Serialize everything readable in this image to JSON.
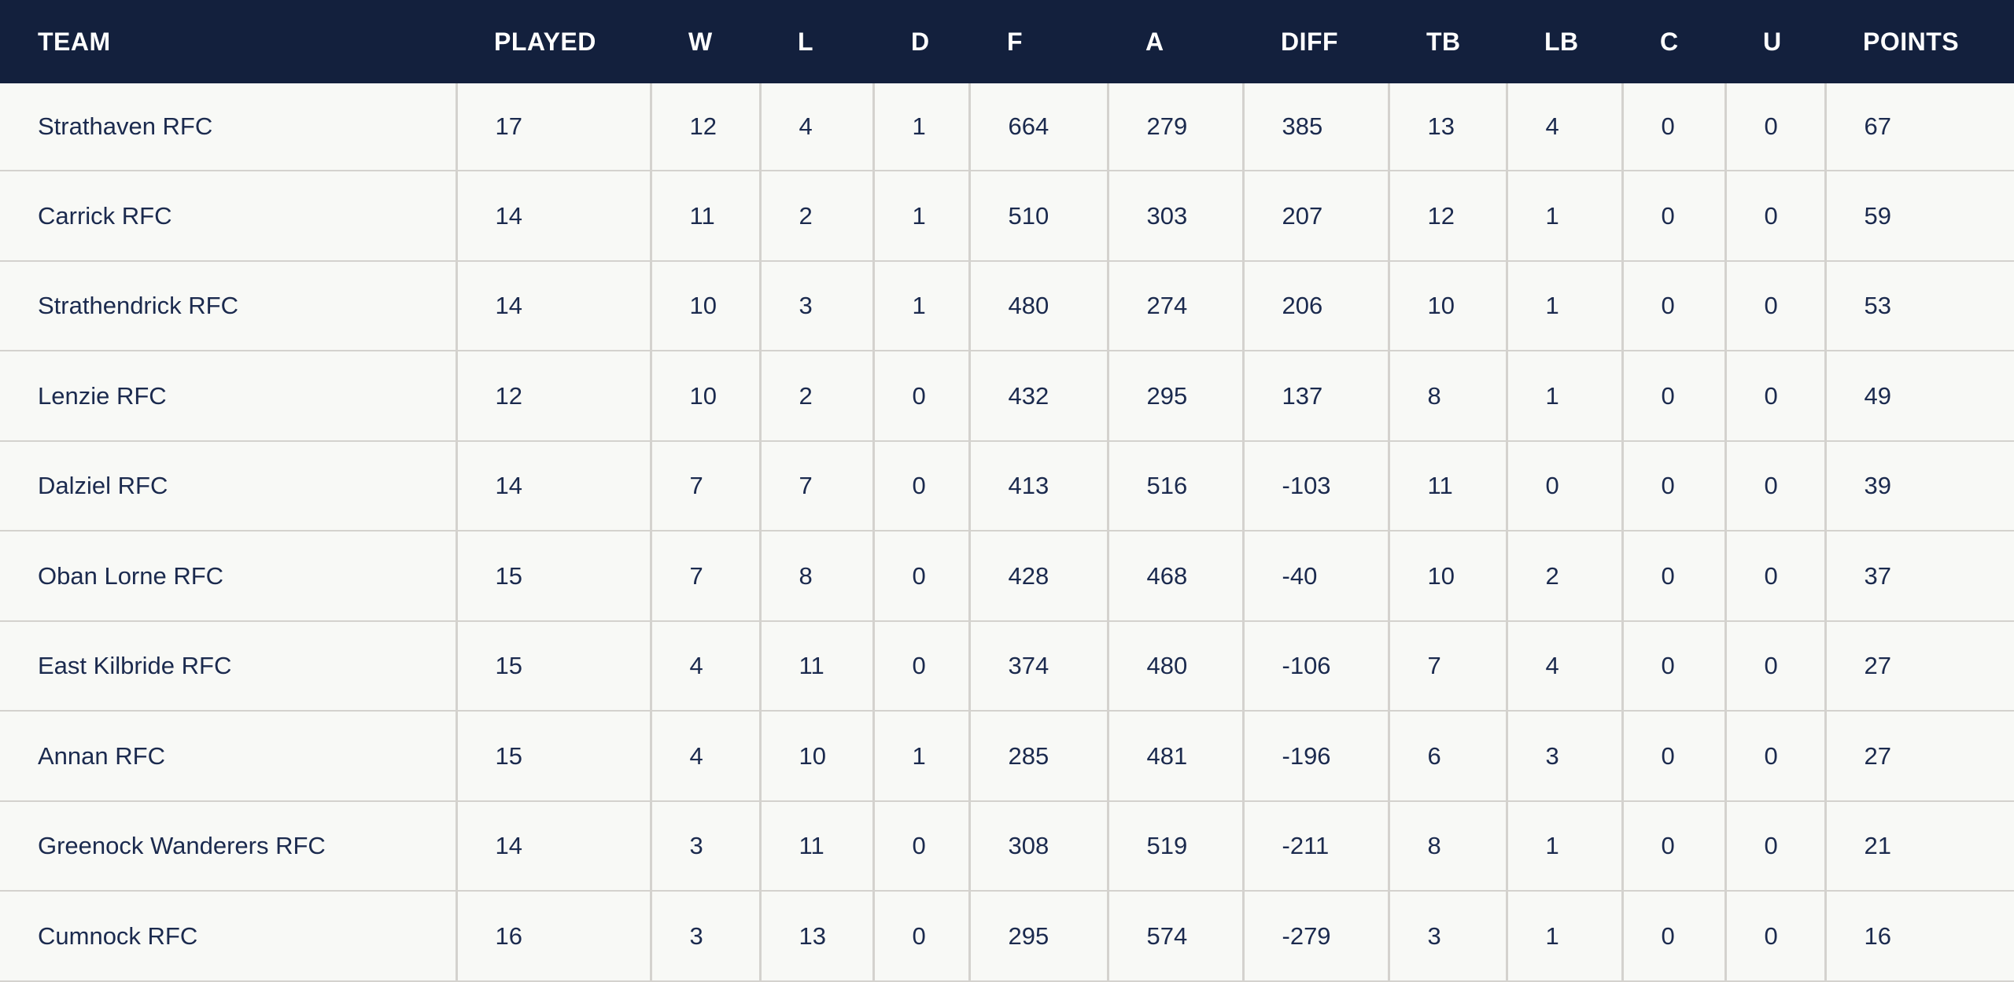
{
  "colors": {
    "header_bg": "#13203d",
    "header_text": "#ffffff",
    "body_bg": "#f8f9f6",
    "body_text": "#1b2a4e",
    "border": "#d4d2ce"
  },
  "table": {
    "columns": [
      {
        "key": "team",
        "label": "TEAM"
      },
      {
        "key": "played",
        "label": "PLAYED"
      },
      {
        "key": "w",
        "label": "W"
      },
      {
        "key": "l",
        "label": "L"
      },
      {
        "key": "d",
        "label": "D"
      },
      {
        "key": "f",
        "label": "F"
      },
      {
        "key": "a",
        "label": "A"
      },
      {
        "key": "diff",
        "label": "DIFF"
      },
      {
        "key": "tb",
        "label": "TB"
      },
      {
        "key": "lb",
        "label": "LB"
      },
      {
        "key": "c",
        "label": "C"
      },
      {
        "key": "u",
        "label": "U"
      },
      {
        "key": "points",
        "label": "POINTS"
      }
    ],
    "rows": [
      {
        "team": "Strathaven RFC",
        "played": 17,
        "w": 12,
        "l": 4,
        "d": 1,
        "f": 664,
        "a": 279,
        "diff": 385,
        "tb": 13,
        "lb": 4,
        "c": 0,
        "u": 0,
        "points": 67
      },
      {
        "team": "Carrick RFC",
        "played": 14,
        "w": 11,
        "l": 2,
        "d": 1,
        "f": 510,
        "a": 303,
        "diff": 207,
        "tb": 12,
        "lb": 1,
        "c": 0,
        "u": 0,
        "points": 59
      },
      {
        "team": "Strathendrick RFC",
        "played": 14,
        "w": 10,
        "l": 3,
        "d": 1,
        "f": 480,
        "a": 274,
        "diff": 206,
        "tb": 10,
        "lb": 1,
        "c": 0,
        "u": 0,
        "points": 53
      },
      {
        "team": "Lenzie RFC",
        "played": 12,
        "w": 10,
        "l": 2,
        "d": 0,
        "f": 432,
        "a": 295,
        "diff": 137,
        "tb": 8,
        "lb": 1,
        "c": 0,
        "u": 0,
        "points": 49
      },
      {
        "team": "Dalziel RFC",
        "played": 14,
        "w": 7,
        "l": 7,
        "d": 0,
        "f": 413,
        "a": 516,
        "diff": -103,
        "tb": 11,
        "lb": 0,
        "c": 0,
        "u": 0,
        "points": 39
      },
      {
        "team": "Oban Lorne RFC",
        "played": 15,
        "w": 7,
        "l": 8,
        "d": 0,
        "f": 428,
        "a": 468,
        "diff": -40,
        "tb": 10,
        "lb": 2,
        "c": 0,
        "u": 0,
        "points": 37
      },
      {
        "team": "East Kilbride RFC",
        "played": 15,
        "w": 4,
        "l": 11,
        "d": 0,
        "f": 374,
        "a": 480,
        "diff": -106,
        "tb": 7,
        "lb": 4,
        "c": 0,
        "u": 0,
        "points": 27
      },
      {
        "team": "Annan RFC",
        "played": 15,
        "w": 4,
        "l": 10,
        "d": 1,
        "f": 285,
        "a": 481,
        "diff": -196,
        "tb": 6,
        "lb": 3,
        "c": 0,
        "u": 0,
        "points": 27
      },
      {
        "team": "Greenock Wanderers RFC",
        "played": 14,
        "w": 3,
        "l": 11,
        "d": 0,
        "f": 308,
        "a": 519,
        "diff": -211,
        "tb": 8,
        "lb": 1,
        "c": 0,
        "u": 0,
        "points": 21
      },
      {
        "team": "Cumnock RFC",
        "played": 16,
        "w": 3,
        "l": 13,
        "d": 0,
        "f": 295,
        "a": 574,
        "diff": -279,
        "tb": 3,
        "lb": 1,
        "c": 0,
        "u": 0,
        "points": 16
      }
    ]
  }
}
